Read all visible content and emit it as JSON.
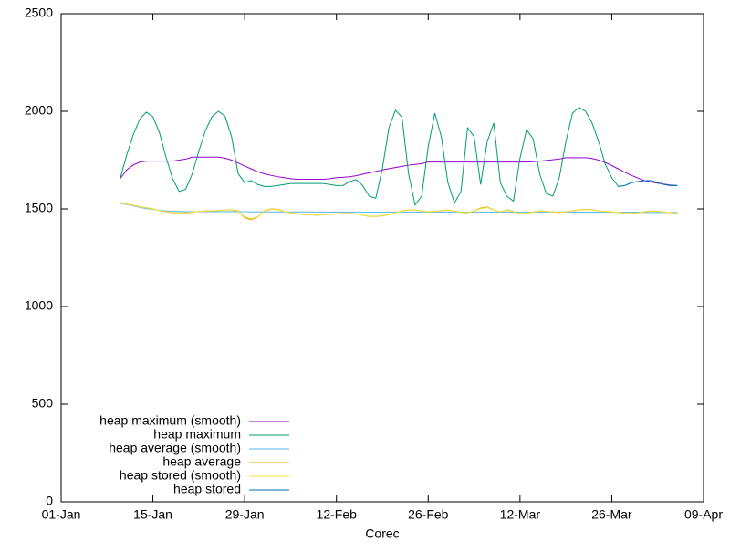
{
  "chart_data": {
    "type": "line",
    "xlabel": "Corec",
    "x": [
      9,
      10,
      11,
      12,
      13,
      14,
      15,
      16,
      17,
      18,
      19,
      20,
      21,
      22,
      23,
      24,
      25,
      26,
      27,
      28,
      29,
      30,
      31,
      32,
      33,
      34,
      35,
      36,
      37,
      38,
      39,
      40,
      41,
      42,
      43,
      44,
      45,
      46,
      47,
      48,
      49,
      50,
      51,
      52,
      53,
      54,
      55,
      56,
      57,
      58,
      59,
      60,
      61,
      62,
      63,
      64,
      65,
      66,
      67,
      68,
      69,
      70,
      71,
      72,
      73,
      74,
      75,
      76,
      77,
      78,
      79,
      80,
      81,
      82,
      83,
      84,
      85,
      86,
      87,
      88,
      89,
      90,
      91,
      92,
      93,
      94
    ],
    "xlim": [
      0,
      98
    ],
    "xticks": [
      {
        "value": 0,
        "label": "01-Jan"
      },
      {
        "value": 14,
        "label": "15-Jan"
      },
      {
        "value": 28,
        "label": "29-Jan"
      },
      {
        "value": 42,
        "label": "12-Feb"
      },
      {
        "value": 56,
        "label": "26-Feb"
      },
      {
        "value": 70,
        "label": "12-Mar"
      },
      {
        "value": 84,
        "label": "26-Mar"
      },
      {
        "value": 98,
        "label": "09-Apr"
      }
    ],
    "ylim": [
      0,
      2500
    ],
    "yticks": [
      0,
      500,
      1000,
      1500,
      2000,
      2500
    ],
    "legend": "lower left",
    "series": [
      {
        "name": "heap maximum (smooth)",
        "color": "#9400d3",
        "values": [
          1655,
          1700,
          1725,
          1740,
          1745,
          1745,
          1745,
          1745,
          1745,
          1750,
          1755,
          1765,
          1765,
          1765,
          1765,
          1765,
          1760,
          1750,
          1735,
          1720,
          1705,
          1690,
          1680,
          1672,
          1665,
          1660,
          1655,
          1652,
          1652,
          1652,
          1652,
          1652,
          1655,
          1660,
          1662,
          1665,
          1670,
          1678,
          1685,
          1692,
          1700,
          1706,
          1712,
          1718,
          1724,
          1728,
          1732,
          1740,
          1740,
          1740,
          1740,
          1740,
          1740,
          1740,
          1740,
          1740,
          1740,
          1740,
          1740,
          1740,
          1740,
          1740,
          1740,
          1742,
          1745,
          1748,
          1752,
          1756,
          1762,
          1762,
          1762,
          1762,
          1758,
          1750,
          1738,
          1722,
          1705,
          1688,
          1672,
          1658,
          1645,
          1638,
          1632,
          1627,
          1622,
          1620
        ]
      },
      {
        "name": "heap maximum",
        "color": "#009e73",
        "values": [
          1655,
          1776,
          1880,
          1960,
          1996,
          1972,
          1890,
          1765,
          1655,
          1590,
          1600,
          1680,
          1795,
          1900,
          1972,
          2000,
          1975,
          1870,
          1680,
          1635,
          1645,
          1625,
          1615,
          1615,
          1620,
          1625,
          1630,
          1630,
          1630,
          1630,
          1630,
          1630,
          1625,
          1620,
          1620,
          1640,
          1650,
          1620,
          1565,
          1555,
          1705,
          1915,
          2005,
          1970,
          1680,
          1520,
          1565,
          1820,
          1990,
          1870,
          1635,
          1530,
          1590,
          1915,
          1870,
          1625,
          1845,
          1940,
          1635,
          1565,
          1540,
          1760,
          1905,
          1860,
          1680,
          1580,
          1565,
          1660,
          1845,
          1990,
          2020,
          2000,
          1940,
          1845,
          1730,
          1660,
          1615,
          1620,
          1635,
          1640,
          1645,
          1645,
          1635,
          1625,
          1620,
          1620
        ]
      },
      {
        "name": "heap average (smooth)",
        "color": "#56b4e9",
        "values": [
          1530,
          1522,
          1515,
          1508,
          1502,
          1497,
          1493,
          1490,
          1488,
          1487,
          1486,
          1486,
          1486,
          1486,
          1486,
          1486,
          1486,
          1486,
          1486,
          1486,
          1485,
          1485,
          1485,
          1485,
          1485,
          1485,
          1485,
          1485,
          1485,
          1485,
          1484,
          1484,
          1484,
          1484,
          1484,
          1484,
          1484,
          1484,
          1484,
          1484,
          1484,
          1484,
          1484,
          1484,
          1484,
          1484,
          1484,
          1484,
          1484,
          1484,
          1484,
          1484,
          1484,
          1484,
          1484,
          1484,
          1484,
          1484,
          1484,
          1484,
          1484,
          1484,
          1484,
          1484,
          1484,
          1484,
          1484,
          1484,
          1484,
          1484,
          1483,
          1483,
          1483,
          1483,
          1483,
          1483,
          1483,
          1483,
          1483,
          1483,
          1482,
          1482,
          1482,
          1482,
          1482,
          1482
        ]
      },
      {
        "name": "heap average",
        "color": "#e69f00",
        "values": [
          1533,
          1525,
          1518,
          1512,
          1506,
          1500,
          1492,
          1485,
          1480,
          1480,
          1480,
          1483,
          1488,
          1490,
          1490,
          1492,
          1495,
          1495,
          1490,
          1455,
          1445,
          1460,
          1490,
          1500,
          1498,
          1488,
          1480,
          1475,
          1470,
          1470,
          1468,
          1470,
          1472,
          1475,
          1478,
          1478,
          1475,
          1468,
          1462,
          1462,
          1465,
          1470,
          1480,
          1490,
          1495,
          1495,
          1490,
          1485,
          1488,
          1492,
          1495,
          1490,
          1482,
          1480,
          1490,
          1505,
          1510,
          1495,
          1485,
          1495,
          1488,
          1475,
          1478,
          1485,
          1490,
          1488,
          1485,
          1482,
          1486,
          1492,
          1496,
          1498,
          1496,
          1490,
          1487,
          1485,
          1482,
          1478,
          1477,
          1480,
          1486,
          1490,
          1488,
          1485,
          1480,
          1475
        ]
      },
      {
        "name": "heap stored (smooth)",
        "color": "#f0e442",
        "values": [
          1532,
          1524,
          1517,
          1511,
          1505,
          1499,
          1492,
          1486,
          1481,
          1480,
          1481,
          1484,
          1487,
          1489,
          1490,
          1492,
          1494,
          1494,
          1488,
          1460,
          1450,
          1462,
          1488,
          1498,
          1496,
          1487,
          1480,
          1475,
          1471,
          1470,
          1469,
          1470,
          1472,
          1475,
          1477,
          1477,
          1474,
          1468,
          1463,
          1463,
          1466,
          1471,
          1480,
          1489,
          1494,
          1494,
          1489,
          1486,
          1488,
          1491,
          1494,
          1489,
          1483,
          1481,
          1490,
          1502,
          1507,
          1494,
          1486,
          1493,
          1487,
          1477,
          1479,
          1485,
          1489,
          1488,
          1485,
          1483,
          1486,
          1491,
          1495,
          1497,
          1495,
          1490,
          1487,
          1485,
          1482,
          1479,
          1478,
          1480,
          1485,
          1489,
          1487,
          1484,
          1480,
          1476
        ]
      },
      {
        "name": "heap stored",
        "color": "#0072b2",
        "values": [
          null,
          null,
          null,
          null,
          null,
          null,
          null,
          null,
          null,
          null,
          null,
          null,
          null,
          null,
          null,
          null,
          null,
          null,
          null,
          null,
          null,
          null,
          null,
          null,
          null,
          null,
          null,
          null,
          null,
          null,
          null,
          null,
          null,
          null,
          null,
          null,
          null,
          null,
          null,
          null,
          null,
          null,
          null,
          null,
          null,
          null,
          null,
          null,
          null,
          null,
          null,
          null,
          null,
          null,
          null,
          null,
          null,
          null,
          null,
          null,
          null,
          null,
          null,
          null,
          null,
          null,
          null,
          null,
          null,
          null,
          null,
          null,
          null,
          null,
          null,
          null,
          1615,
          1620,
          1635,
          1640,
          1645,
          1645,
          1635,
          1625,
          1620,
          1620
        ]
      }
    ]
  }
}
